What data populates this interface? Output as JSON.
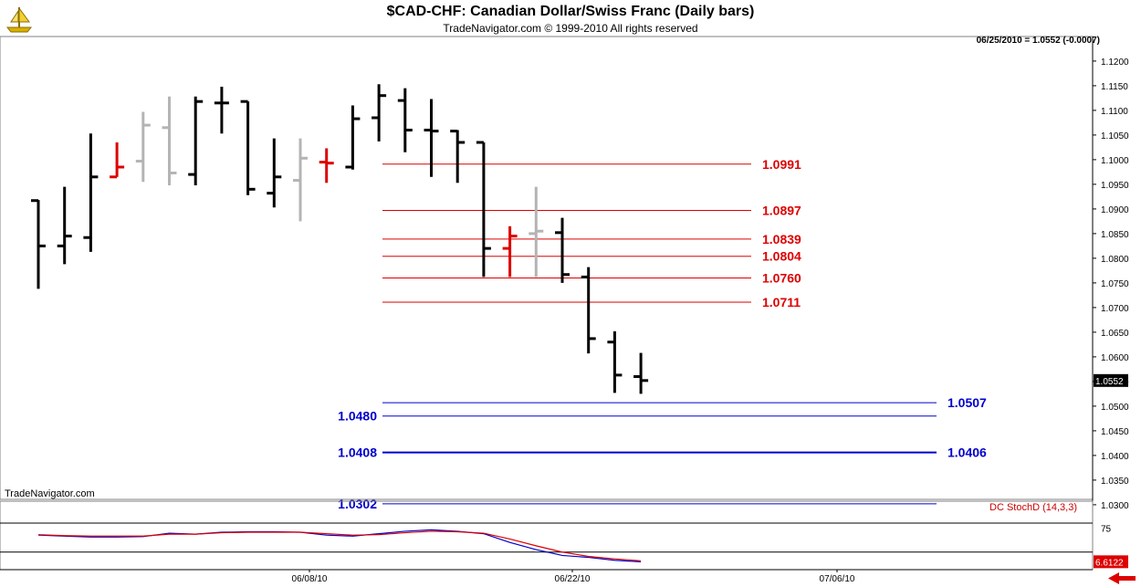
{
  "title": "$CAD-CHF:  Canadian Dollar/Swiss Franc  (Daily bars)",
  "subtitle": "TradeNavigator.com © 1999-2010 All rights reserved",
  "readout": "06/25/2010 = 1.0552 (-0.0007)",
  "footer": "TradeNavigator.com",
  "indicator_label": "DC  StochD (14,3,3)",
  "colors": {
    "up": "#000000",
    "gray": "#b4b4b4",
    "red": "#dd0000",
    "resistance": "#dd0000",
    "support": "#0000cc",
    "stoch_k": "#0000cc",
    "stoch_d": "#cc0000"
  },
  "chart_data": [
    {
      "type": "ohlc",
      "title": "$CAD-CHF:  Canadian Dollar/Swiss Franc  (Daily bars)",
      "ylim": [
        1.025,
        1.123
      ],
      "y_ticks": [
        "1.0300",
        "1.0350",
        "1.0400",
        "1.0450",
        "1.0500",
        "1.0550",
        "1.0600",
        "1.0650",
        "1.0700",
        "1.0750",
        "1.0800",
        "1.0850",
        "1.0900",
        "1.0950",
        "1.1000",
        "1.1050",
        "1.1100",
        "1.1150",
        "1.1200"
      ],
      "x_labels": [
        "06/08/10",
        "06/22/10",
        "07/06/10"
      ],
      "last_price_label": "1.0552",
      "bars": [
        {
          "o": 1.0917,
          "h": 1.0918,
          "l": 1.0738,
          "c": 1.0825,
          "color": "black"
        },
        {
          "o": 1.0825,
          "h": 1.0945,
          "l": 1.0788,
          "c": 1.0845,
          "color": "black"
        },
        {
          "o": 1.0842,
          "h": 1.1053,
          "l": 1.0813,
          "c": 1.0965,
          "color": "black"
        },
        {
          "o": 1.0965,
          "h": 1.1035,
          "l": 1.0965,
          "c": 1.0985,
          "color": "red"
        },
        {
          "o": 1.0997,
          "h": 1.1097,
          "l": 1.0955,
          "c": 1.107,
          "color": "gray"
        },
        {
          "o": 1.1065,
          "h": 1.1128,
          "l": 1.0948,
          "c": 1.0973,
          "color": "gray"
        },
        {
          "o": 1.097,
          "h": 1.1128,
          "l": 1.0948,
          "c": 1.1118,
          "color": "black"
        },
        {
          "o": 1.1115,
          "h": 1.1148,
          "l": 1.1053,
          "c": 1.1115,
          "color": "black"
        },
        {
          "o": 1.1118,
          "h": 1.1118,
          "l": 1.0928,
          "c": 1.094,
          "color": "black"
        },
        {
          "o": 1.0932,
          "h": 1.1043,
          "l": 1.0903,
          "c": 1.0965,
          "color": "black"
        },
        {
          "o": 1.0958,
          "h": 1.1043,
          "l": 1.0875,
          "c": 1.1003,
          "color": "gray"
        },
        {
          "o": 1.0995,
          "h": 1.1023,
          "l": 1.0953,
          "c": 1.0993,
          "color": "red"
        },
        {
          "o": 1.0985,
          "h": 1.111,
          "l": 1.098,
          "c": 1.1083,
          "color": "black"
        },
        {
          "o": 1.1085,
          "h": 1.1153,
          "l": 1.1037,
          "c": 1.113,
          "color": "black"
        },
        {
          "o": 1.112,
          "h": 1.1145,
          "l": 1.1015,
          "c": 1.106,
          "color": "black"
        },
        {
          "o": 1.106,
          "h": 1.1123,
          "l": 1.0965,
          "c": 1.1058,
          "color": "black"
        },
        {
          "o": 1.1058,
          "h": 1.106,
          "l": 1.0953,
          "c": 1.1035,
          "color": "black"
        },
        {
          "o": 1.1035,
          "h": 1.1035,
          "l": 1.0762,
          "c": 1.082,
          "color": "black"
        },
        {
          "o": 1.082,
          "h": 1.0865,
          "l": 1.0762,
          "c": 1.0845,
          "color": "red"
        },
        {
          "o": 1.085,
          "h": 1.0945,
          "l": 1.0762,
          "c": 1.0855,
          "color": "gray"
        },
        {
          "o": 1.0852,
          "h": 1.0882,
          "l": 1.075,
          "c": 1.0767,
          "color": "black"
        },
        {
          "o": 1.0762,
          "h": 1.0782,
          "l": 1.0607,
          "c": 1.0637,
          "color": "black"
        },
        {
          "o": 1.063,
          "h": 1.0652,
          "l": 1.0527,
          "c": 1.0563,
          "color": "black"
        },
        {
          "o": 1.056,
          "h": 1.0608,
          "l": 1.0525,
          "c": 1.0552,
          "color": "black"
        }
      ],
      "levels": [
        {
          "label": "1.0991",
          "value": 1.0991,
          "kind": "resistance",
          "label_side": "right"
        },
        {
          "label": "1.0897",
          "value": 1.0897,
          "kind": "resistance",
          "label_side": "right"
        },
        {
          "label": "1.0839",
          "value": 1.0839,
          "kind": "resistance",
          "label_side": "right"
        },
        {
          "label": "1.0804",
          "value": 1.0804,
          "kind": "resistance",
          "label_side": "right"
        },
        {
          "label": "1.0760",
          "value": 1.076,
          "kind": "resistance",
          "label_side": "right"
        },
        {
          "label": "1.0711",
          "value": 1.0711,
          "kind": "resistance",
          "label_side": "right"
        },
        {
          "label": "1.0507",
          "value": 1.0507,
          "kind": "support",
          "label_side": "right"
        },
        {
          "label": "1.0480",
          "value": 1.048,
          "kind": "support",
          "label_side": "left"
        },
        {
          "label": "1.0406",
          "value": 1.0406,
          "kind": "support",
          "label_side": "right",
          "secondary_label": "1.0408"
        },
        {
          "label": "1.0302",
          "value": 1.0302,
          "kind": "support",
          "label_side": "left"
        }
      ]
    },
    {
      "type": "line",
      "title": "DC  StochD (14,3,3)",
      "ylim": [
        0,
        100
      ],
      "y_ticks": [
        "75"
      ],
      "reference_lines": [
        85,
        25
      ],
      "last_value_label": "6.6122",
      "series": [
        {
          "color": "blue",
          "values": [
            60,
            58,
            56,
            56,
            57,
            64,
            62,
            66,
            67,
            67,
            66,
            60,
            58,
            63,
            68,
            71,
            68,
            63,
            45,
            30,
            18,
            14,
            8,
            5
          ]
        },
        {
          "color": "red",
          "values": [
            61,
            59,
            58,
            58,
            58,
            62,
            62,
            65,
            66,
            66,
            66,
            63,
            60,
            61,
            65,
            68,
            67,
            64,
            52,
            38,
            25,
            16,
            11,
            7
          ]
        }
      ]
    }
  ]
}
